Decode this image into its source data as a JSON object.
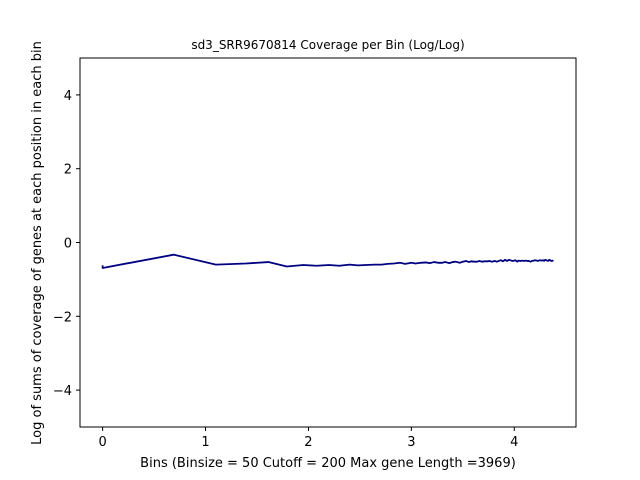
{
  "chart_data": {
    "type": "line",
    "title": "sd3_SRR9670814 Coverage per Bin (Log/Log)",
    "xlabel": "Bins  (Binsize = 50 Cutoff = 200 Max gene Length =3969)",
    "ylabel": "Log of sums of coverage of genes at each position in each bin",
    "xlim": [
      -0.22,
      4.6
    ],
    "ylim": [
      -5,
      5
    ],
    "xticks": [
      "0",
      "1",
      "2",
      "3",
      "4"
    ],
    "yticks": [
      "-4",
      "-2",
      "0",
      "2",
      "4"
    ],
    "grid": false,
    "series": [
      {
        "color": "#000080",
        "x": [
          0.0,
          0.0,
          0.69,
          1.1,
          1.39,
          1.61,
          1.79,
          1.95,
          2.08,
          2.2,
          2.3,
          2.4,
          2.48,
          2.56,
          2.64,
          2.71,
          2.77,
          2.83,
          2.89,
          2.94,
          3.0,
          3.04,
          3.09,
          3.14,
          3.18,
          3.22,
          3.26,
          3.3,
          3.33,
          3.37,
          3.4,
          3.43,
          3.47,
          3.5,
          3.53,
          3.56,
          3.58,
          3.61,
          3.64,
          3.66,
          3.69,
          3.71,
          3.74,
          3.76,
          3.78,
          3.81,
          3.83,
          3.85,
          3.87,
          3.89,
          3.91,
          3.93,
          3.95,
          3.97,
          3.99,
          4.01,
          4.03,
          4.04,
          4.06,
          4.08,
          4.09,
          4.11,
          4.13,
          4.14,
          4.16,
          4.17,
          4.19,
          4.2,
          4.22,
          4.23,
          4.25,
          4.26,
          4.28,
          4.29,
          4.3,
          4.32,
          4.33,
          4.34,
          4.36,
          4.37,
          4.38
        ],
        "y": [
          -0.62,
          -0.69,
          -0.33,
          -0.6,
          -0.57,
          -0.53,
          -0.65,
          -0.61,
          -0.63,
          -0.61,
          -0.63,
          -0.6,
          -0.62,
          -0.61,
          -0.6,
          -0.6,
          -0.58,
          -0.57,
          -0.55,
          -0.58,
          -0.55,
          -0.57,
          -0.55,
          -0.54,
          -0.56,
          -0.53,
          -0.55,
          -0.55,
          -0.53,
          -0.56,
          -0.53,
          -0.52,
          -0.55,
          -0.52,
          -0.5,
          -0.53,
          -0.51,
          -0.52,
          -0.52,
          -0.5,
          -0.52,
          -0.51,
          -0.51,
          -0.5,
          -0.52,
          -0.5,
          -0.52,
          -0.5,
          -0.48,
          -0.51,
          -0.47,
          -0.5,
          -0.47,
          -0.49,
          -0.5,
          -0.48,
          -0.52,
          -0.49,
          -0.5,
          -0.49,
          -0.5,
          -0.49,
          -0.5,
          -0.5,
          -0.52,
          -0.5,
          -0.49,
          -0.48,
          -0.49,
          -0.5,
          -0.48,
          -0.49,
          -0.48,
          -0.5,
          -0.47,
          -0.49,
          -0.5,
          -0.47,
          -0.5,
          -0.49,
          -0.51
        ]
      }
    ]
  }
}
